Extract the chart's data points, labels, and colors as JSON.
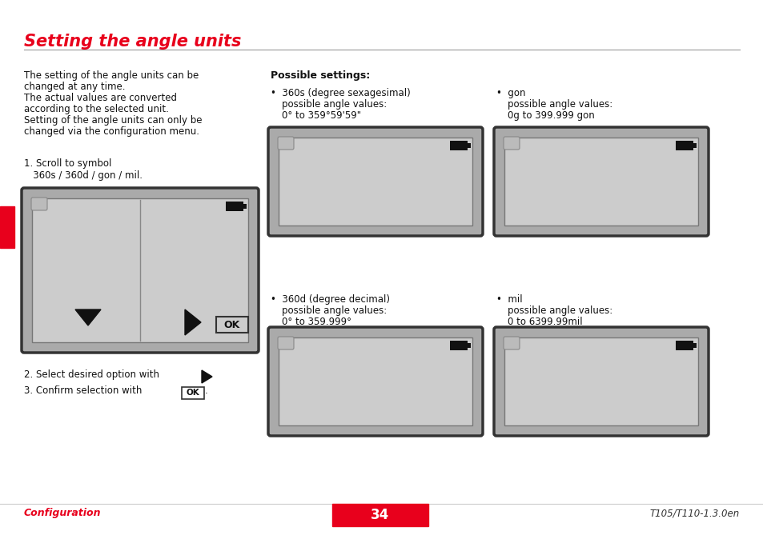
{
  "title": "Setting the angle units",
  "title_color": "#e8001c",
  "bg_color": "#ffffff",
  "left_text_block": [
    "The setting of the angle units can be",
    "changed at any time.",
    "The actual values are converted",
    "according to the selected unit.",
    "Setting of the angle units can only be",
    "changed via the configuration menu."
  ],
  "possible_settings_header": "Possible settings:",
  "settings": [
    {
      "bullet": "•",
      "line1": "360s (degree sexagesimal)",
      "line2": "possible angle values:",
      "line3": "0° to 359°59'59\""
    },
    {
      "bullet": "•",
      "line1": "360d (degree decimal)",
      "line2": "possible angle values:",
      "line3": "0° to 359.999°"
    },
    {
      "bullet": "•",
      "line1": "gon",
      "line2": "possible angle values:",
      "line3": "0g to 399.999 gon"
    },
    {
      "bullet": "•",
      "line1": "mil",
      "line2": "possible angle values:",
      "line3": "0 to 6399.99mil"
    }
  ],
  "footer_left": "Configuration",
  "footer_center": "34",
  "footer_right": "T105/T110-1.3.0en",
  "footer_color": "#e8001c",
  "footer_bg": "#e8001c",
  "red_tab_color": "#e8001c"
}
